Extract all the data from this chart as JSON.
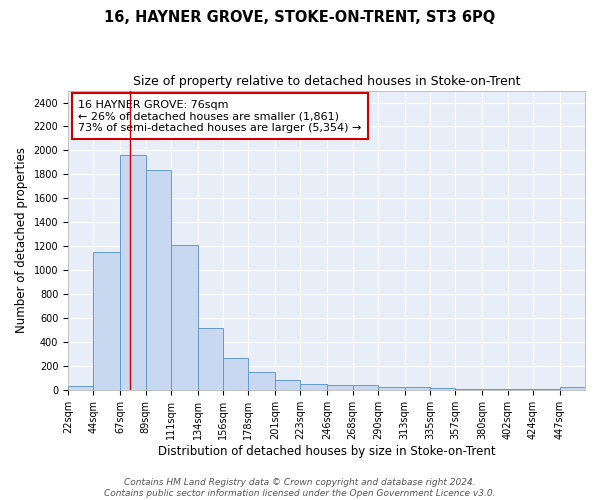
{
  "title": "16, HAYNER GROVE, STOKE-ON-TRENT, ST3 6PQ",
  "subtitle": "Size of property relative to detached houses in Stoke-on-Trent",
  "xlabel": "Distribution of detached houses by size in Stoke-on-Trent",
  "ylabel": "Number of detached properties",
  "footer_line1": "Contains HM Land Registry data © Crown copyright and database right 2024.",
  "footer_line2": "Contains public sector information licensed under the Open Government Licence v3.0.",
  "annotation_line1": "16 HAYNER GROVE: 76sqm",
  "annotation_line2": "← 26% of detached houses are smaller (1,861)",
  "annotation_line3": "73% of semi-detached houses are larger (5,354) →",
  "bar_edges": [
    22,
    44,
    67,
    89,
    111,
    134,
    156,
    178,
    201,
    223,
    246,
    268,
    290,
    313,
    335,
    357,
    380,
    402,
    424,
    447,
    469
  ],
  "bar_heights": [
    30,
    1150,
    1960,
    1840,
    1210,
    520,
    270,
    150,
    85,
    45,
    40,
    40,
    20,
    20,
    15,
    10,
    5,
    5,
    5,
    20
  ],
  "bar_color": "#c8d8f0",
  "bar_edge_color": "#6699cc",
  "red_line_x": 76,
  "ylim": [
    0,
    2500
  ],
  "yticks": [
    0,
    200,
    400,
    600,
    800,
    1000,
    1200,
    1400,
    1600,
    1800,
    2000,
    2200,
    2400
  ],
  "bg_color": "#e8eef8",
  "grid_color": "#ffffff",
  "fig_bg_color": "#ffffff",
  "annotation_box_edge_color": "#cc0000",
  "title_fontsize": 10.5,
  "subtitle_fontsize": 9,
  "axis_label_fontsize": 8.5,
  "tick_fontsize": 7,
  "footer_fontsize": 6.5,
  "annotation_fontsize": 8
}
